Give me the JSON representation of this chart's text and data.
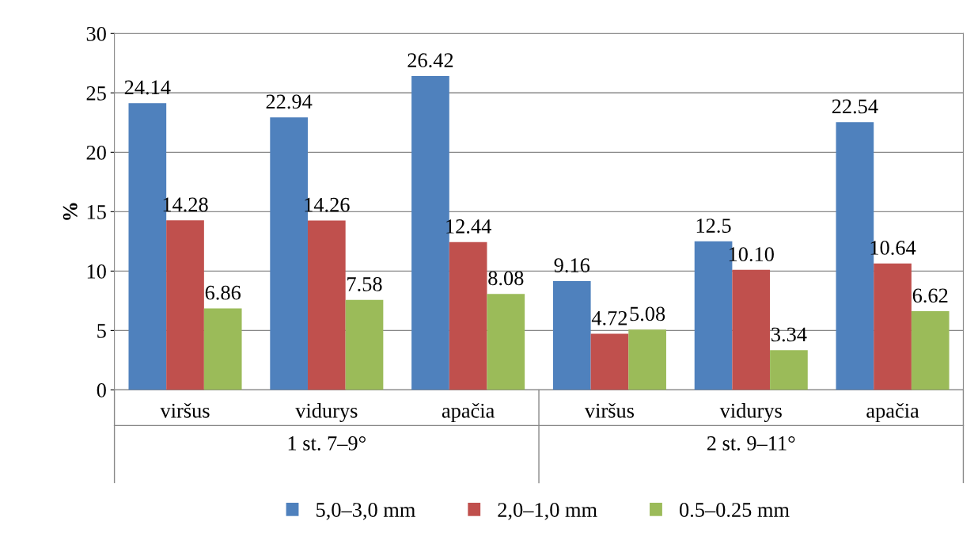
{
  "chart_data": {
    "type": "bar",
    "ylabel": "%",
    "categories": [
      "viršus",
      "vidurys",
      "apačia",
      "viršus",
      "vidurys",
      "apačia"
    ],
    "annotations": [
      "1 st. 7–9°",
      "2 st. 9–11°"
    ],
    "series": [
      {
        "name": "5,0–3,0 mm",
        "color": "#4f81bd",
        "values": [
          24.14,
          22.94,
          26.42,
          9.16,
          12.5,
          22.54
        ],
        "value_labels": [
          "24.14",
          "22.94",
          "26.42",
          "9.16",
          "12.5",
          "22.54"
        ]
      },
      {
        "name": "2,0–1,0 mm",
        "color": "#c0504d",
        "values": [
          14.28,
          14.26,
          12.44,
          4.72,
          10.1,
          10.64
        ],
        "value_labels": [
          "14.28",
          "14.26",
          "12.44",
          "4.72",
          "10.10",
          "10.64"
        ]
      },
      {
        "name": "0.5–0.25 mm",
        "color": "#9bbb59",
        "values": [
          6.86,
          7.58,
          8.08,
          5.08,
          3.34,
          6.62
        ],
        "value_labels": [
          "6.86",
          "7.58",
          "8.08",
          "5.08",
          "3.34",
          "6.62"
        ]
      }
    ],
    "ylim": [
      0,
      30
    ],
    "yticks": [
      0,
      5,
      10,
      15,
      20,
      25,
      30
    ],
    "grid": "y",
    "legend": "bottom"
  }
}
